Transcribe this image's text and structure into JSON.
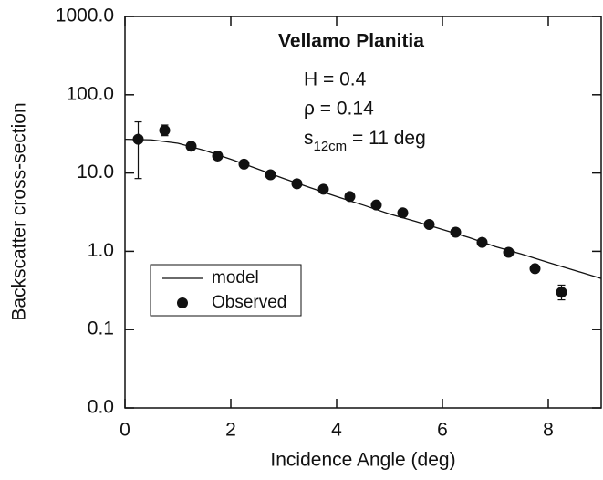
{
  "chart_data": {
    "type": "scatter",
    "annotations": {
      "title": "Vellamo Planitia",
      "h": "H = 0.4",
      "rho": "ρ = 0.14",
      "s": "s",
      "s_sub": "12cm",
      "s_rest": " = 11 deg"
    },
    "xlabel": "Incidence Angle (deg)",
    "ylabel": "Backscatter cross-section",
    "xlim": [
      0,
      9
    ],
    "xticks": [
      0,
      2,
      4,
      6,
      8
    ],
    "ylim": [
      0.01,
      1000
    ],
    "log_y": true,
    "yticks": [
      {
        "value": 0.01,
        "label": "0.0"
      },
      {
        "value": 0.1,
        "label": "0.1"
      },
      {
        "value": 1,
        "label": "1.0"
      },
      {
        "value": 10,
        "label": "10.0"
      },
      {
        "value": 100,
        "label": "100.0"
      },
      {
        "value": 1000,
        "label": "1000.0"
      }
    ],
    "legend": "lower left",
    "series": [
      {
        "name": "model",
        "kind": "line",
        "color": "#111111",
        "x": [
          0,
          0.5,
          1,
          1.5,
          2,
          2.5,
          3,
          3.5,
          4,
          4.5,
          5,
          5.5,
          6,
          6.5,
          7,
          7.5,
          8,
          8.5,
          9
        ],
        "values": [
          27,
          26.5,
          24,
          19.5,
          15,
          11.3,
          8.5,
          6.5,
          5,
          3.9,
          3,
          2.4,
          1.9,
          1.5,
          1.15,
          0.92,
          0.72,
          0.57,
          0.45
        ]
      },
      {
        "name": "Observed",
        "kind": "points",
        "color": "#111111",
        "x": [
          0.25,
          0.75,
          1.25,
          1.75,
          2.25,
          2.75,
          3.25,
          3.75,
          4.25,
          4.75,
          5.25,
          5.75,
          6.25,
          6.75,
          7.25,
          7.75,
          8.25
        ],
        "values": [
          27,
          35,
          22,
          16.5,
          13,
          9.5,
          7.3,
          6.2,
          5,
          3.9,
          3.1,
          2.2,
          1.75,
          1.3,
          0.97,
          0.6,
          0.3
        ],
        "low": [
          8.5,
          30,
          null,
          null,
          null,
          null,
          null,
          null,
          null,
          null,
          null,
          null,
          null,
          null,
          null,
          null,
          0.24
        ],
        "high": [
          45,
          41,
          null,
          null,
          null,
          null,
          null,
          null,
          null,
          null,
          null,
          null,
          null,
          null,
          null,
          null,
          0.37
        ]
      }
    ]
  }
}
